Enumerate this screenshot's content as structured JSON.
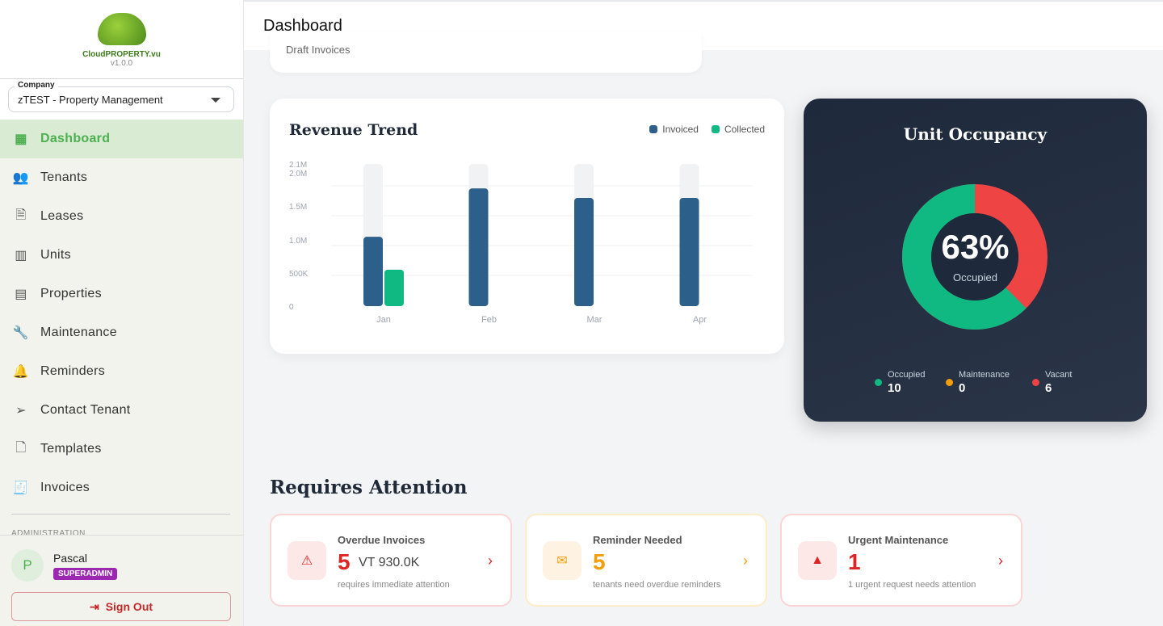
{
  "app": {
    "logo_text": "CloudPROPERTY.vu",
    "version": "v1.0.0"
  },
  "company": {
    "label": "Company",
    "value": "zTEST - Property Management"
  },
  "nav": [
    {
      "label": "Dashboard",
      "icon": "dashboard-icon",
      "active": true
    },
    {
      "label": "Tenants",
      "icon": "people-icon"
    },
    {
      "label": "Leases",
      "icon": "document-icon"
    },
    {
      "label": "Units",
      "icon": "building-icon"
    },
    {
      "label": "Properties",
      "icon": "business-icon"
    },
    {
      "label": "Maintenance",
      "icon": "wrench-icon"
    },
    {
      "label": "Reminders",
      "icon": "bell-icon"
    },
    {
      "label": "Contact Tenant",
      "icon": "send-icon"
    },
    {
      "label": "Templates",
      "icon": "file-icon"
    },
    {
      "label": "Invoices",
      "icon": "receipt-icon"
    }
  ],
  "admin_section": "ADMINISTRATION",
  "user": {
    "initial": "P",
    "name": "Pascal",
    "role": "SUPERADMIN",
    "sign_out": "Sign Out"
  },
  "header": {
    "title": "Dashboard"
  },
  "draft_card": {
    "label": "Draft Invoices"
  },
  "chart_data": {
    "type": "bar",
    "title": "Revenue Trend",
    "categories": [
      "Jan",
      "Feb",
      "Mar",
      "Apr"
    ],
    "series": [
      {
        "name": "Invoiced",
        "color": "#2d5f8b",
        "values": [
          1160000,
          1970000,
          1810000,
          1810000
        ]
      },
      {
        "name": "Collected",
        "color": "#10b981",
        "values": [
          610000,
          0,
          0,
          0
        ]
      }
    ],
    "yticks": [
      "0",
      "500K",
      "1.0M",
      "1.5M",
      "2.0M",
      "2.1M"
    ],
    "ylim": [
      0,
      2100000
    ],
    "grid": true,
    "legend": "top-right"
  },
  "occupancy": {
    "title": "Unit Occupancy",
    "percent": "63%",
    "percent_label": "Occupied",
    "items": [
      {
        "label": "Occupied",
        "value": "10",
        "color": "#10b981"
      },
      {
        "label": "Maintenance",
        "value": "0",
        "color": "#f59e0b"
      },
      {
        "label": "Vacant",
        "value": "6",
        "color": "#ef4444"
      }
    ]
  },
  "attention": {
    "title": "Requires Attention",
    "cards": [
      {
        "title": "Overdue Invoices",
        "count": "5",
        "amount": "VT 930.0K",
        "sub": "requires immediate attention",
        "color": "#dc2626"
      },
      {
        "title": "Reminder Needed",
        "count": "5",
        "sub": "tenants need overdue reminders",
        "color": "#f59e0b"
      },
      {
        "title": "Urgent Maintenance",
        "count": "1",
        "sub": "1 urgent request needs attention",
        "color": "#dc2626"
      }
    ]
  }
}
